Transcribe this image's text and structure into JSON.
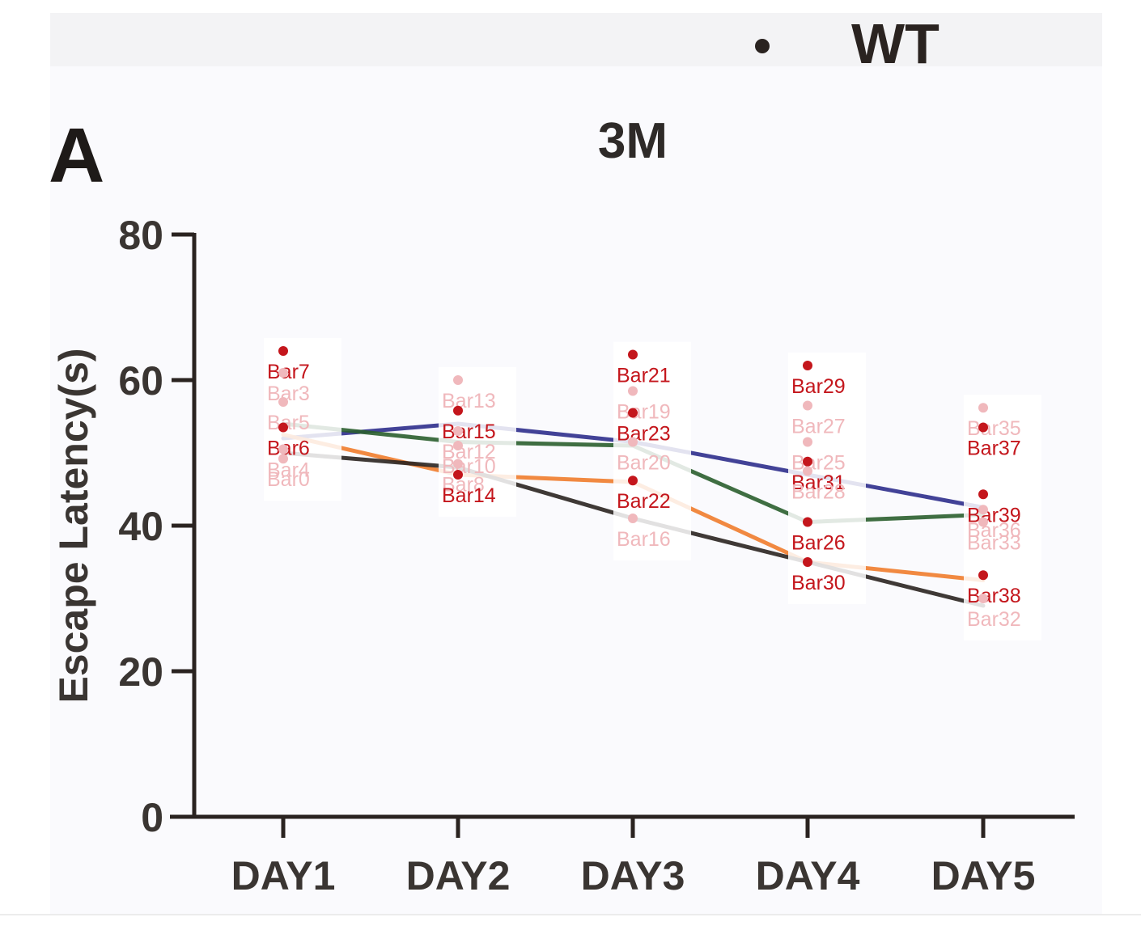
{
  "figure": {
    "panel_label": "A",
    "legend_text": "WT"
  },
  "chart_data": {
    "type": "line",
    "title": "3M",
    "xlabel": "",
    "ylabel": "Escape Latency(s)",
    "categories": [
      "DAY1",
      "DAY2",
      "DAY3",
      "DAY4",
      "DAY5"
    ],
    "yticks": [
      0,
      20,
      40,
      60,
      80
    ],
    "ylim": [
      0,
      80
    ],
    "grid": false,
    "legend_position": "top-right",
    "series": [
      {
        "values": [
          52.0,
          54.0,
          51.5,
          47.0,
          42.5
        ],
        "color": "#2e2e8c"
      },
      {
        "values": [
          54.0,
          51.5,
          51.0,
          40.5,
          41.5
        ],
        "color": "#2a5e2e"
      },
      {
        "values": [
          52.5,
          47.0,
          46.0,
          35.0,
          32.5
        ],
        "color": "#f07c2c"
      },
      {
        "values": [
          50.0,
          48.0,
          41.0,
          35.0,
          29.0
        ],
        "color": "#2a2320"
      }
    ],
    "annotations": [
      {
        "label": "Bar7",
        "day": 0,
        "value": 64.0,
        "style": "dark"
      },
      {
        "label": "Bar3",
        "day": 0,
        "value": 61.0,
        "style": "faint"
      },
      {
        "label": "Bar5",
        "day": 0,
        "value": 57.0,
        "style": "faint"
      },
      {
        "label": "Bar6",
        "day": 0,
        "value": 53.5,
        "style": "dark"
      },
      {
        "label": "Bar4",
        "day": 0,
        "value": 50.5,
        "style": "faint"
      },
      {
        "label": "Bar0",
        "day": 0,
        "value": 49.2,
        "style": "faint"
      },
      {
        "label": "Bar13",
        "day": 1,
        "value": 60.0,
        "style": "faint"
      },
      {
        "label": "Bar15",
        "day": 1,
        "value": 55.8,
        "style": "dark"
      },
      {
        "label": "Bar12",
        "day": 1,
        "value": 53.0,
        "style": "faint"
      },
      {
        "label": "Bar10",
        "day": 1,
        "value": 51.0,
        "style": "faint"
      },
      {
        "label": "Bar8",
        "day": 1,
        "value": 48.5,
        "style": "faint"
      },
      {
        "label": "Bar14",
        "day": 1,
        "value": 47.0,
        "style": "dark"
      },
      {
        "label": "Bar21",
        "day": 2,
        "value": 63.5,
        "style": "dark"
      },
      {
        "label": "Bar19",
        "day": 2,
        "value": 58.5,
        "style": "faint"
      },
      {
        "label": "Bar23",
        "day": 2,
        "value": 55.5,
        "style": "dark"
      },
      {
        "label": "Bar20",
        "day": 2,
        "value": 51.5,
        "style": "faint"
      },
      {
        "label": "Bar22",
        "day": 2,
        "value": 46.2,
        "style": "dark"
      },
      {
        "label": "Bar16",
        "day": 2,
        "value": 41.0,
        "style": "faint"
      },
      {
        "label": "Bar29",
        "day": 3,
        "value": 62.0,
        "style": "dark"
      },
      {
        "label": "Bar27",
        "day": 3,
        "value": 56.5,
        "style": "faint"
      },
      {
        "label": "Bar25",
        "day": 3,
        "value": 51.5,
        "style": "faint"
      },
      {
        "label": "Bar31",
        "day": 3,
        "value": 48.8,
        "style": "dark"
      },
      {
        "label": "Bar28",
        "day": 3,
        "value": 47.5,
        "style": "faint"
      },
      {
        "label": "Bar26",
        "day": 3,
        "value": 40.5,
        "style": "dark"
      },
      {
        "label": "Bar30",
        "day": 3,
        "value": 35.0,
        "style": "dark"
      },
      {
        "label": "Bar35",
        "day": 4,
        "value": 56.2,
        "style": "faint"
      },
      {
        "label": "Bar37",
        "day": 4,
        "value": 53.5,
        "style": "dark"
      },
      {
        "label": "Bar39",
        "day": 4,
        "value": 44.3,
        "style": "dark"
      },
      {
        "label": "Bar36",
        "day": 4,
        "value": 42.2,
        "style": "faint"
      },
      {
        "label": "Bar33",
        "day": 4,
        "value": 40.5,
        "style": "faint"
      },
      {
        "label": "Bar38",
        "day": 4,
        "value": 33.2,
        "style": "dark"
      },
      {
        "label": "Bar32",
        "day": 4,
        "value": 30.0,
        "style": "faint"
      }
    ]
  }
}
